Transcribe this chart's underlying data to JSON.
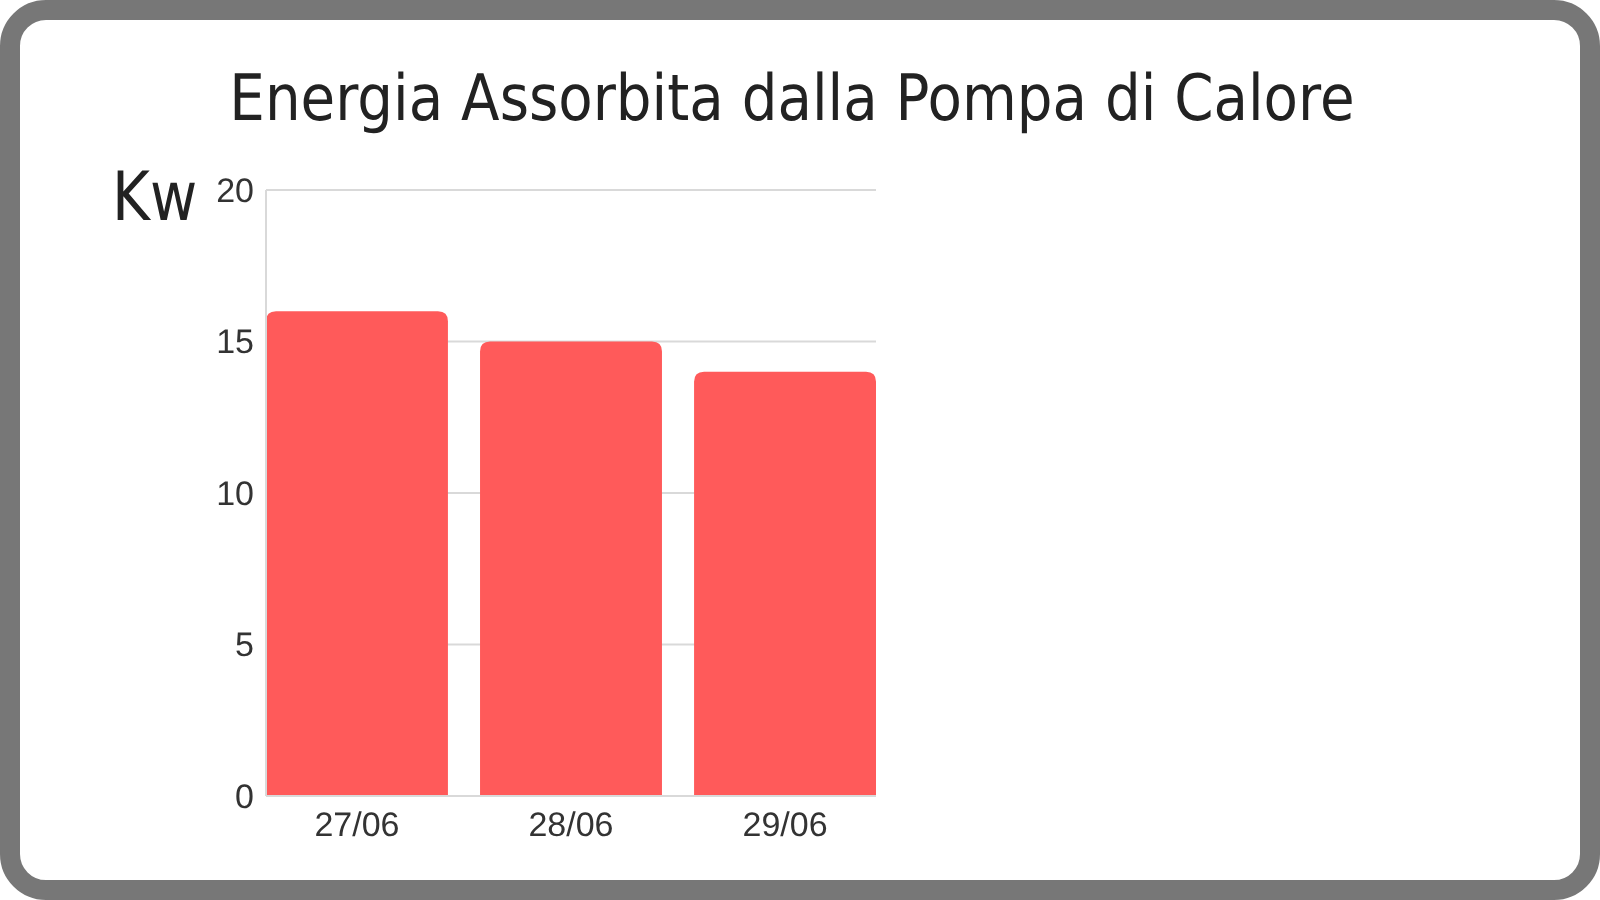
{
  "chart_data": {
    "type": "bar",
    "title": "Energia Assorbita dalla Pompa di Calore",
    "ylabel": "Kw",
    "categories": [
      "27/06",
      "28/06",
      "29/06"
    ],
    "values": [
      16,
      15,
      14
    ],
    "color": "#ff5a5a",
    "ylim": [
      0,
      20
    ],
    "yticks": [
      0,
      5,
      10,
      15,
      20
    ],
    "grid": "y"
  }
}
